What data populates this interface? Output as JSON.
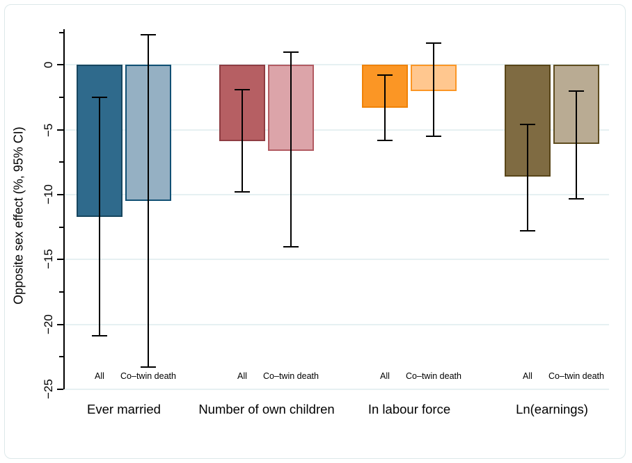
{
  "chart_data": {
    "type": "bar",
    "title": "",
    "ylabel": "Opposite sex effect (%, 95% CI)",
    "ylim": [
      -25,
      2.75
    ],
    "grid": true,
    "legend_position": "none",
    "yticks_major": [
      {
        "value": 0,
        "label": "0"
      },
      {
        "value": -5,
        "label": "−5"
      },
      {
        "value": -10,
        "label": "−10"
      },
      {
        "value": -15,
        "label": "−15"
      },
      {
        "value": -20,
        "label": "−20"
      },
      {
        "value": -25,
        "label": "−25"
      }
    ],
    "yticks_minor": [
      2.5,
      -2.5,
      -7.5,
      -12.5,
      -17.5,
      -22.5
    ],
    "series_labels": [
      "All",
      "Co–twin death"
    ],
    "groups": [
      {
        "label": "Ever married",
        "bars": [
          {
            "series": "All",
            "value": -11.7,
            "ci_high": -2.5,
            "ci_low": -20.9,
            "fill": "#2f6a8c",
            "border": "#17465f"
          },
          {
            "series": "Co–twin death",
            "value": -10.5,
            "ci_high": 2.3,
            "ci_low": -23.3,
            "fill": "#95b0c3",
            "border": "#115074"
          }
        ]
      },
      {
        "label": "Number of own children",
        "bars": [
          {
            "series": "All",
            "value": -5.9,
            "ci_high": -1.9,
            "ci_low": -9.8,
            "fill": "#b65f63",
            "border": "#8e3c42"
          },
          {
            "series": "Co–twin death",
            "value": -6.6,
            "ci_high": 1.0,
            "ci_low": -14.0,
            "fill": "#dca4a9",
            "border": "#b25b62"
          }
        ]
      },
      {
        "label": "In labour force",
        "bars": [
          {
            "series": "All",
            "value": -3.3,
            "ci_high": -0.8,
            "ci_low": -5.8,
            "fill": "#fb9625",
            "border": "#ef8207"
          },
          {
            "series": "Co–twin death",
            "value": -2.0,
            "ci_high": 1.7,
            "ci_low": -5.5,
            "fill": "#ffc78f",
            "border": "#fb9625"
          }
        ]
      },
      {
        "label": "Ln(earnings)",
        "bars": [
          {
            "series": "All",
            "value": -8.6,
            "ci_high": -4.6,
            "ci_low": -12.8,
            "fill": "#7f6b42",
            "border": "#584518"
          },
          {
            "series": "Co–twin death",
            "value": -6.1,
            "ci_high": -2.0,
            "ci_low": -10.3,
            "fill": "#b9ab93",
            "border": "#5e4c1e"
          }
        ]
      }
    ],
    "colors": {
      "grid": "#e6f0f2",
      "axis": "#000000",
      "error_bar": "#000000",
      "figure_border": "#dce8ea"
    }
  }
}
